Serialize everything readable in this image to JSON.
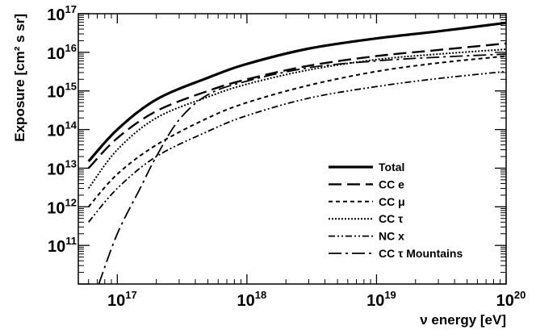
{
  "chart_data": {
    "type": "line",
    "xlabel": "ν energy [eV]",
    "ylabel": "Exposure [cm² s sr]",
    "x_scale": "log",
    "y_scale": "log",
    "xlim": [
      5e+16,
      1e+20
    ],
    "ylim": [
      10000000000.0,
      1e+17
    ],
    "grid": false,
    "legend_position": "bottom-right",
    "x_ticks": [
      {
        "base": "10",
        "exp": "17",
        "value": 1e+17
      },
      {
        "base": "10",
        "exp": "18",
        "value": 1e+18
      },
      {
        "base": "10",
        "exp": "19",
        "value": 1e+19
      },
      {
        "base": "10",
        "exp": "20",
        "value": 1e+20
      }
    ],
    "y_ticks": [
      {
        "base": "10",
        "exp": "11",
        "value": 100000000000.0
      },
      {
        "base": "10",
        "exp": "12",
        "value": 1000000000000.0
      },
      {
        "base": "10",
        "exp": "13",
        "value": 10000000000000.0
      },
      {
        "base": "10",
        "exp": "14",
        "value": 100000000000000.0
      },
      {
        "base": "10",
        "exp": "15",
        "value": 1000000000000000.0
      },
      {
        "base": "10",
        "exp": "16",
        "value": 1e+16
      },
      {
        "base": "10",
        "exp": "17",
        "value": 1e+17
      }
    ],
    "series": [
      {
        "name": "Total",
        "dash": "solid",
        "width": 3.2,
        "x": [
          6e+16,
          1e+17,
          2e+17,
          5e+17,
          1e+18,
          3e+18,
          1e+19,
          3e+19,
          1e+20
        ],
        "y": [
          15000000000000.0,
          100000000000000.0,
          600000000000000.0,
          2200000000000000.0,
          5000000000000000.0,
          1.25e+16,
          2.3e+16,
          3.5e+16,
          5.8e+16
        ]
      },
      {
        "name": "CC e",
        "dash": "longdash",
        "width": 2.4,
        "x": [
          6e+16,
          1e+17,
          2e+17,
          5e+17,
          1e+18,
          3e+18,
          1e+19,
          3e+19,
          1e+20
        ],
        "y": [
          10000000000000.0,
          60000000000000.0,
          300000000000000.0,
          1000000000000000.0,
          2000000000000000.0,
          4500000000000000.0,
          8000000000000000.0,
          1.15e+16,
          1.7e+16
        ]
      },
      {
        "name": "CC μ",
        "dash": "shortdash",
        "width": 2,
        "x": [
          6e+16,
          1e+17,
          2e+17,
          5e+17,
          1e+18,
          3e+18,
          1e+19,
          3e+19,
          1e+20
        ],
        "y": [
          1000000000000.0,
          7000000000000.0,
          40000000000000.0,
          200000000000000.0,
          500000000000000.0,
          1400000000000000.0,
          3200000000000000.0,
          5300000000000000.0,
          8000000000000000.0
        ]
      },
      {
        "name": "CC τ",
        "dash": "dotted",
        "width": 2,
        "x": [
          6e+16,
          1e+17,
          2e+17,
          5e+17,
          1e+18,
          3e+18,
          1e+19,
          3e+19,
          1e+20
        ],
        "y": [
          3000000000000.0,
          30000000000000.0,
          200000000000000.0,
          700000000000000.0,
          1500000000000000.0,
          3500000000000000.0,
          6500000000000000.0,
          9000000000000000.0,
          1.2e+16
        ]
      },
      {
        "name": "NC x",
        "dash": "dashdotdot",
        "width": 1.8,
        "x": [
          6e+16,
          1e+17,
          2e+17,
          5e+17,
          1e+18,
          3e+18,
          1e+19,
          3e+19,
          1e+20
        ],
        "y": [
          400000000000.0,
          3000000000000.0,
          20000000000000.0,
          90000000000000.0,
          230000000000000.0,
          650000000000000.0,
          1300000000000000.0,
          2100000000000000.0,
          3200000000000000.0
        ]
      },
      {
        "name": "CC τ Mountains",
        "dash": "dashdot",
        "width": 1.8,
        "x": [
          7.2e+16,
          1e+17,
          1.5e+17,
          2e+17,
          3e+17,
          5e+17,
          1e+18,
          3e+18,
          1e+19,
          3e+19,
          1e+20
        ],
        "y": [
          10000000000.0,
          200000000000.0,
          3000000000000.0,
          20000000000000.0,
          180000000000000.0,
          800000000000000.0,
          1800000000000000.0,
          4000000000000000.0,
          6000000000000000.0,
          7500000000000000.0,
          9000000000000000.0
        ]
      }
    ]
  }
}
